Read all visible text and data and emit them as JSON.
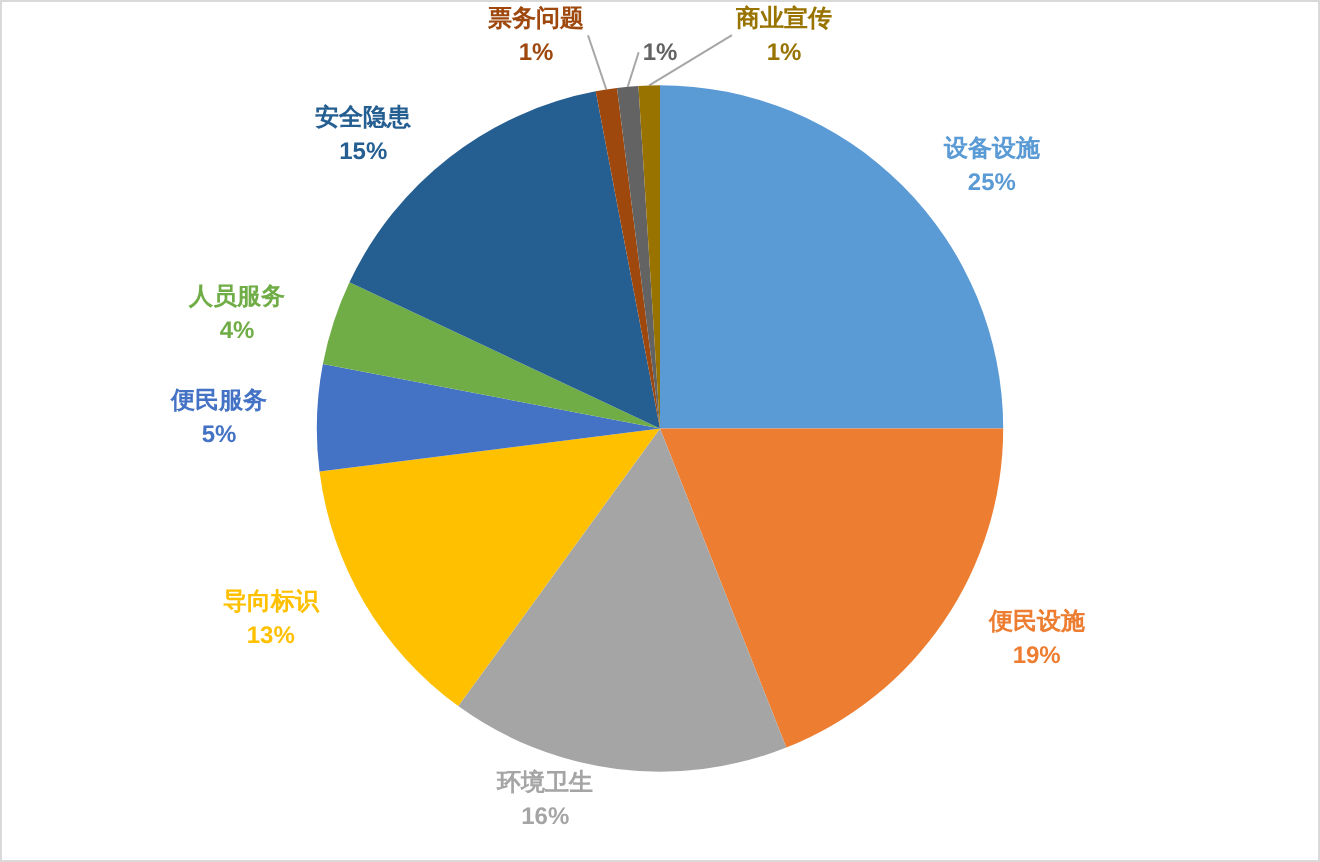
{
  "chart_data": {
    "type": "pie",
    "categories": [
      "设备设施",
      "便民设施",
      "环境卫生",
      "导向标识",
      "便民服务",
      "人员服务",
      "安全隐患",
      "票务问题",
      null,
      "商业宣传"
    ],
    "values": [
      25,
      19,
      16,
      13,
      5,
      4,
      15,
      1,
      1,
      1
    ],
    "colors": [
      "#5b9bd5",
      "#ed7d31",
      "#a5a5a5",
      "#ffc000",
      "#4472c4",
      "#70ad47",
      "#255e91",
      "#9e480e",
      "#636363",
      "#997300"
    ],
    "value_labels": [
      "25%",
      "19%",
      "16%",
      "13%",
      "5%",
      "4%",
      "15%",
      "1%",
      "1%",
      "1%"
    ]
  }
}
